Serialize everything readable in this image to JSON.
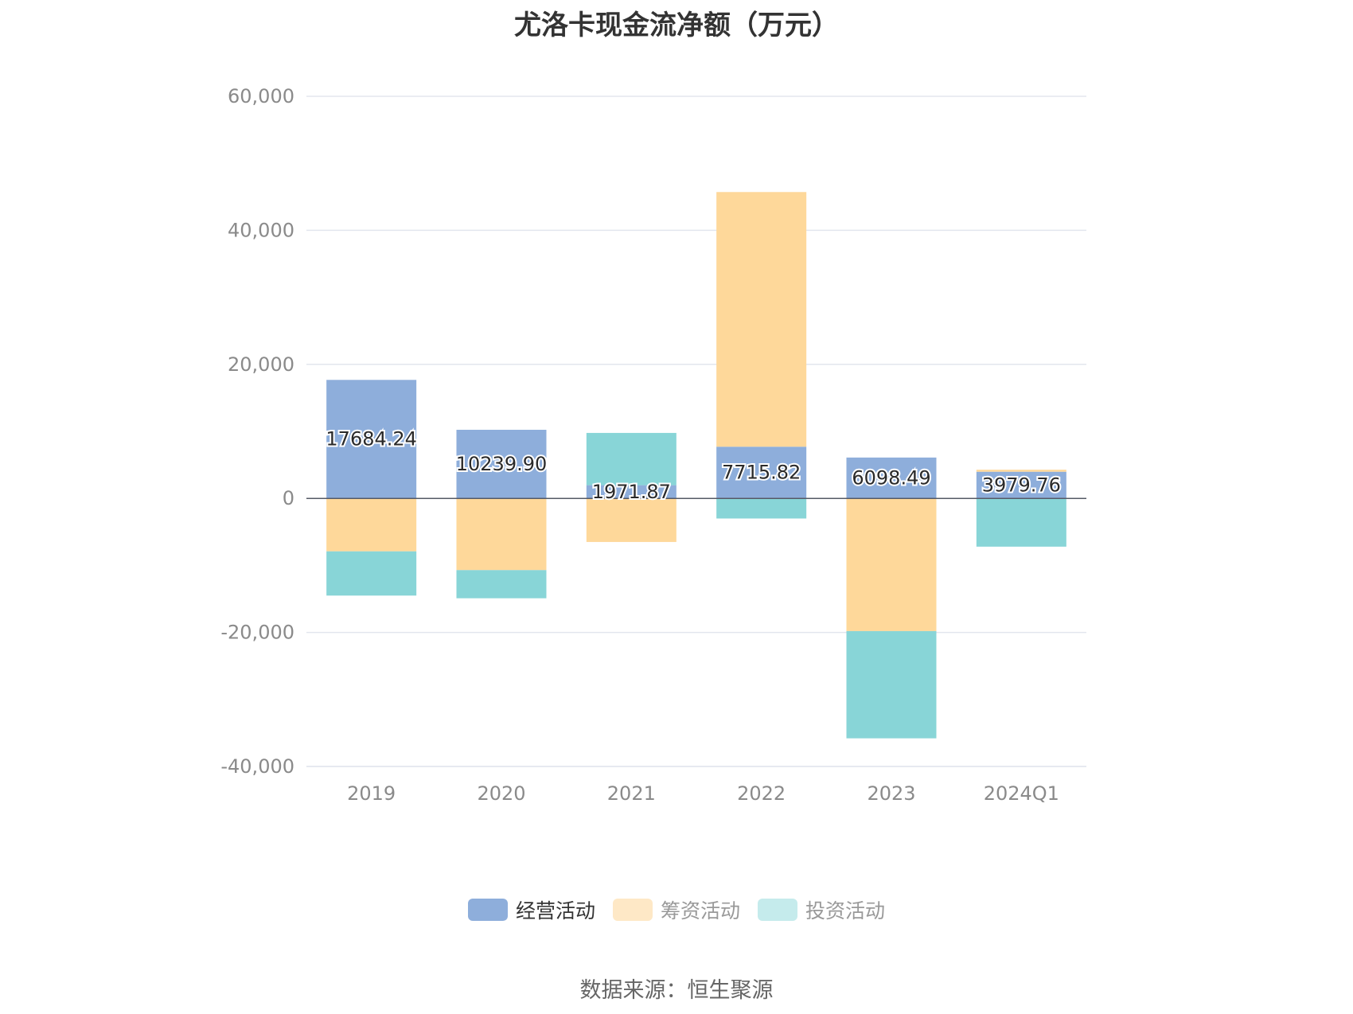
{
  "chart_data": {
    "type": "bar",
    "stacked": true,
    "title": "尤洛卡现金流净额（万元）",
    "xlabel": "",
    "ylabel": "",
    "categories": [
      "2019",
      "2020",
      "2021",
      "2022",
      "2023",
      "2024Q1"
    ],
    "series": [
      {
        "name": "经营活动",
        "color": "#8eaedb",
        "values": [
          17684.24,
          10239.9,
          1971.87,
          7715.82,
          6098.49,
          3979.76
        ],
        "labels": [
          "17684.24",
          "10239.90",
          "1971.87",
          "7715.82",
          "6098.49",
          "3979.76"
        ]
      },
      {
        "name": "筹资活动",
        "color": "#fed89a",
        "values": [
          -7900,
          -10700,
          -6500,
          38000,
          -19800,
          300
        ]
      },
      {
        "name": "投资活动",
        "color": "#88d5d7",
        "values": [
          -6600,
          -4200,
          7800,
          -3000,
          -16000,
          -7200
        ]
      }
    ],
    "ylim": [
      -40000,
      60000
    ],
    "yticks": [
      60000,
      40000,
      20000,
      0,
      -20000,
      -40000
    ],
    "ytick_labels": [
      "60,000",
      "40,000",
      "20,000",
      "0",
      "-20,000",
      "-40,000"
    ],
    "grid": true,
    "legend_position": "bottom-center",
    "legend": [
      {
        "name": "经营活动",
        "color": "#8eaedb",
        "text_color": "#333333"
      },
      {
        "name": "筹资活动",
        "color": "#fee8c6",
        "text_color": "#999999"
      },
      {
        "name": "投资活动",
        "color": "#c5ebec",
        "text_color": "#999999"
      }
    ],
    "source": "数据来源：恒生聚源"
  }
}
